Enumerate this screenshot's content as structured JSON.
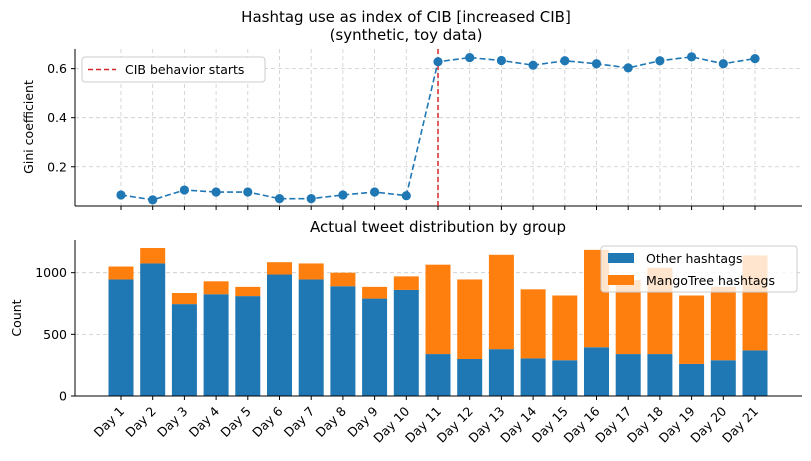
{
  "chart_data": [
    {
      "type": "line",
      "title": "Hashtag use as index of CIB [increased CIB]",
      "subtitle": "(synthetic, toy data)",
      "xlabel": "",
      "ylabel": "Gini coefficient",
      "categories": [
        "Day 1",
        "Day 2",
        "Day 3",
        "Day 4",
        "Day 5",
        "Day 6",
        "Day 7",
        "Day 8",
        "Day 9",
        "Day 10",
        "Day 11",
        "Day 12",
        "Day 13",
        "Day 14",
        "Day 15",
        "Day 16",
        "Day 17",
        "Day 18",
        "Day 19",
        "Day 20",
        "Day 21"
      ],
      "values": [
        0.085,
        0.065,
        0.105,
        0.097,
        0.097,
        0.07,
        0.07,
        0.085,
        0.097,
        0.082,
        0.628,
        0.645,
        0.633,
        0.614,
        0.632,
        0.62,
        0.603,
        0.632,
        0.648,
        0.62,
        0.641
      ],
      "ylim": [
        0.04,
        0.68
      ],
      "yticks": [
        "0.2",
        "0.4",
        "0.6"
      ],
      "grid": true,
      "color": "#1f77b4",
      "line_style": "dashed",
      "markers": true,
      "vline": {
        "at": "Day 11",
        "label": "CIB behavior starts",
        "color": "#d62728",
        "style": "dashed"
      },
      "legend": [
        "CIB behavior starts"
      ],
      "legend_position": "top-left"
    },
    {
      "type": "bar",
      "stacked": true,
      "title": "Actual tweet distribution by group",
      "xlabel": "",
      "ylabel": "Count",
      "categories": [
        "Day 1",
        "Day 2",
        "Day 3",
        "Day 4",
        "Day 5",
        "Day 6",
        "Day 7",
        "Day 8",
        "Day 9",
        "Day 10",
        "Day 11",
        "Day 12",
        "Day 13",
        "Day 14",
        "Day 15",
        "Day 16",
        "Day 17",
        "Day 18",
        "Day 19",
        "Day 20",
        "Day 21"
      ],
      "series": [
        {
          "name": "Other hashtags",
          "color": "#1f77b4",
          "values": [
            945,
            1075,
            745,
            825,
            810,
            985,
            945,
            890,
            790,
            860,
            340,
            300,
            380,
            305,
            290,
            395,
            340,
            340,
            260,
            290,
            370
          ]
        },
        {
          "name": "MangoTree hashtags",
          "color": "#ff7f0e",
          "values": [
            105,
            125,
            90,
            105,
            75,
            100,
            130,
            110,
            95,
            110,
            725,
            645,
            765,
            560,
            525,
            790,
            600,
            700,
            555,
            595,
            770
          ]
        }
      ],
      "ylim": [
        0,
        1265
      ],
      "yticks": [
        "0",
        "500",
        "1000"
      ],
      "grid": true,
      "legend_position": "top-right"
    }
  ]
}
